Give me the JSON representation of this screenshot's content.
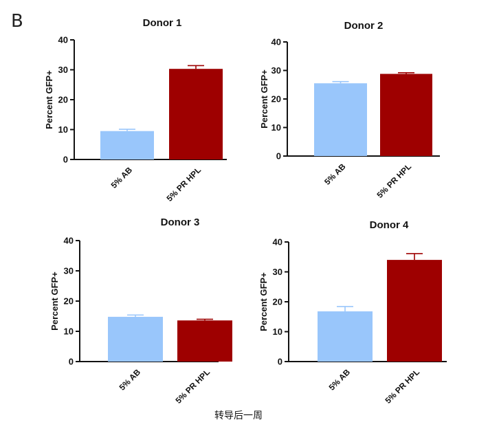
{
  "panel_label": "B",
  "caption": "转导后一周",
  "colors": {
    "ab": "#99c6fb",
    "hpl": "#9e0000",
    "axis": "#111111"
  },
  "chart_data": [
    {
      "type": "bar",
      "title": "Donor 1",
      "categories": [
        "5% AB",
        "5% PR HPL"
      ],
      "values": [
        9.5,
        30.3
      ],
      "errors": [
        0.6,
        1.1
      ],
      "ylabel": "Percent  GFP+",
      "xlabel": "",
      "ylim": [
        0,
        40
      ],
      "yticks": [
        "0",
        "10",
        "20",
        "30",
        "40"
      ],
      "grid": false
    },
    {
      "type": "bar",
      "title": "Donor 2",
      "categories": [
        "5% AB",
        "5% PR HPL"
      ],
      "values": [
        25.5,
        28.8
      ],
      "errors": [
        0.6,
        0.4
      ],
      "ylabel": "Percent  GFP+",
      "xlabel": "",
      "ylim": [
        0,
        40
      ],
      "yticks": [
        "0",
        "10",
        "20",
        "30",
        "40"
      ],
      "grid": false
    },
    {
      "type": "bar",
      "title": "Donor 3",
      "categories": [
        "5% AB",
        "5% PR HPL"
      ],
      "values": [
        14.8,
        13.6
      ],
      "errors": [
        0.6,
        0.4
      ],
      "ylabel": "Percent  GFP+",
      "xlabel": "",
      "ylim": [
        0,
        40
      ],
      "yticks": [
        "0",
        "10",
        "20",
        "30",
        "40"
      ],
      "grid": false
    },
    {
      "type": "bar",
      "title": "Donor 4",
      "categories": [
        "5% AB",
        "5% PR HPL"
      ],
      "values": [
        16.8,
        34.0
      ],
      "errors": [
        1.6,
        2.1
      ],
      "ylabel": "Percent  GFP+",
      "xlabel": "",
      "ylim": [
        0,
        40
      ],
      "yticks": [
        "0",
        "10",
        "20",
        "30",
        "40"
      ],
      "grid": false
    }
  ]
}
